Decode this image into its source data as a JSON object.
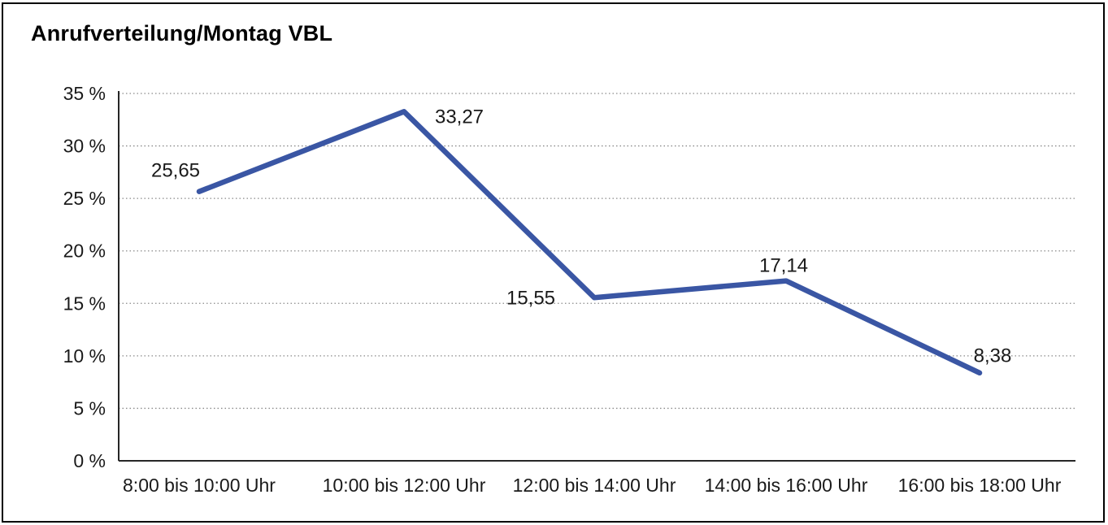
{
  "chart_data": {
    "type": "line",
    "title": "Anrufverteilung/Montag VBL",
    "categories": [
      "8:00 bis 10:00 Uhr",
      "10:00 bis 12:00 Uhr",
      "12:00 bis 14:00 Uhr",
      "14:00 bis 16:00 Uhr",
      "16:00 bis 18:00 Uhr"
    ],
    "values": [
      25.65,
      33.27,
      15.55,
      17.14,
      8.38
    ],
    "value_labels": [
      "25,65",
      "33,27",
      "15,55",
      "17,14",
      "8,38"
    ],
    "yticks": [
      {
        "value": 35,
        "label": "35 %"
      },
      {
        "value": 30,
        "label": "30 %"
      },
      {
        "value": 25,
        "label": "25 %"
      },
      {
        "value": 20,
        "label": "20 %"
      },
      {
        "value": 15,
        "label": "15 %"
      },
      {
        "value": 10,
        "label": "10 %"
      },
      {
        "value": 5,
        "label": "5 %"
      },
      {
        "value": 0,
        "label": "0 %"
      }
    ],
    "ylim": [
      0,
      35
    ],
    "xlabel": "",
    "ylabel": "",
    "legend": "none",
    "grid": "horizontal-dotted",
    "line_color": "#3A56A4",
    "axis_color": "#262626",
    "grid_color": "#8a8a8a",
    "text_color": "#1a1a1a"
  }
}
